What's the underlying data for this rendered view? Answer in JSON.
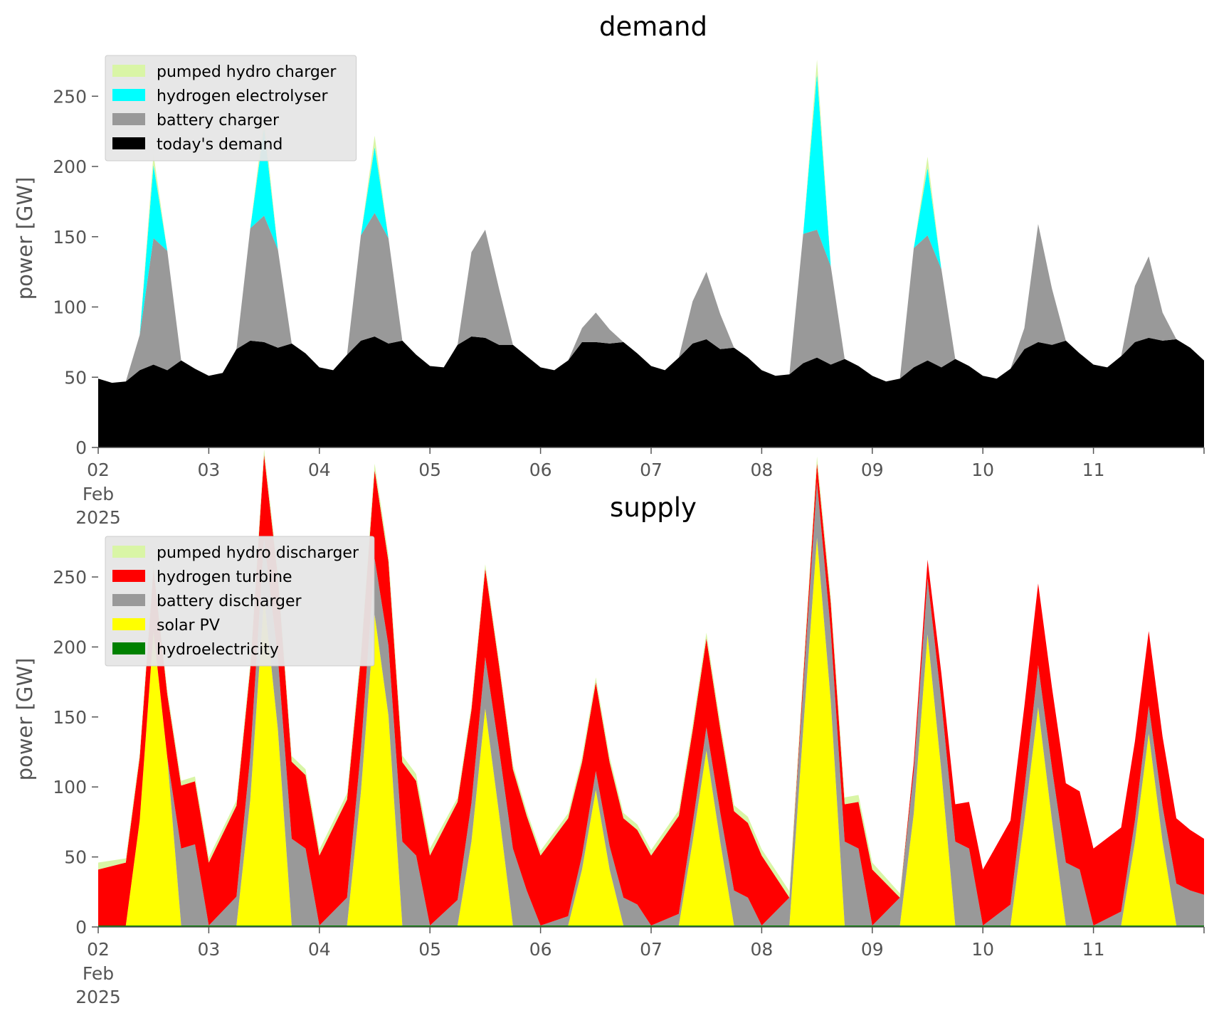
{
  "chart_data": [
    {
      "type": "area",
      "title": "demand",
      "ylabel": "power [GW]",
      "xlabel": "",
      "ylim": [
        0,
        280
      ],
      "xlim": [
        "2025-02-02",
        "2025-02-12"
      ],
      "y_ticks": [
        0,
        50,
        100,
        150,
        200,
        250
      ],
      "y_tick_labels": [
        "0",
        "50",
        "100",
        "150",
        "200",
        "250"
      ],
      "x_ticks": [
        "2025-02-02",
        "2025-02-03",
        "2025-02-04",
        "2025-02-05",
        "2025-02-06",
        "2025-02-07",
        "2025-02-08",
        "2025-02-09",
        "2025-02-10",
        "2025-02-11"
      ],
      "x_tick_labels": [
        "02",
        "03",
        "04",
        "05",
        "06",
        "07",
        "08",
        "09",
        "10",
        "11"
      ],
      "x_tick_sublabels": [
        "Feb",
        "2025"
      ],
      "legend_position": "top-left",
      "stacked": true,
      "series": [
        {
          "name": "today's demand",
          "color": "#000000",
          "x": [
            "2025-02-02 00:00",
            "2025-02-02 03:00",
            "2025-02-02 06:00",
            "2025-02-02 09:00",
            "2025-02-02 12:00",
            "2025-02-02 15:00",
            "2025-02-02 18:00",
            "2025-02-02 21:00",
            "2025-02-03 00:00",
            "2025-02-03 03:00",
            "2025-02-03 06:00",
            "2025-02-03 09:00",
            "2025-02-03 12:00",
            "2025-02-03 15:00",
            "2025-02-03 18:00",
            "2025-02-03 21:00",
            "2025-02-04 00:00",
            "2025-02-04 03:00",
            "2025-02-04 06:00",
            "2025-02-04 09:00",
            "2025-02-04 12:00",
            "2025-02-04 15:00",
            "2025-02-04 18:00",
            "2025-02-04 21:00",
            "2025-02-05 00:00",
            "2025-02-05 03:00",
            "2025-02-05 06:00",
            "2025-02-05 09:00",
            "2025-02-05 12:00",
            "2025-02-05 15:00",
            "2025-02-05 18:00",
            "2025-02-05 21:00",
            "2025-02-06 00:00",
            "2025-02-06 03:00",
            "2025-02-06 06:00",
            "2025-02-06 09:00",
            "2025-02-06 12:00",
            "2025-02-06 15:00",
            "2025-02-06 18:00",
            "2025-02-06 21:00",
            "2025-02-07 00:00",
            "2025-02-07 03:00",
            "2025-02-07 06:00",
            "2025-02-07 09:00",
            "2025-02-07 12:00",
            "2025-02-07 15:00",
            "2025-02-07 18:00",
            "2025-02-07 21:00",
            "2025-02-08 00:00",
            "2025-02-08 03:00",
            "2025-02-08 06:00",
            "2025-02-08 09:00",
            "2025-02-08 12:00",
            "2025-02-08 15:00",
            "2025-02-08 18:00",
            "2025-02-08 21:00",
            "2025-02-09 00:00",
            "2025-02-09 03:00",
            "2025-02-09 06:00",
            "2025-02-09 09:00",
            "2025-02-09 12:00",
            "2025-02-09 15:00",
            "2025-02-09 18:00",
            "2025-02-09 21:00",
            "2025-02-10 00:00",
            "2025-02-10 03:00",
            "2025-02-10 06:00",
            "2025-02-10 09:00",
            "2025-02-10 12:00",
            "2025-02-10 15:00",
            "2025-02-10 18:00",
            "2025-02-10 21:00",
            "2025-02-11 00:00",
            "2025-02-11 03:00",
            "2025-02-11 06:00",
            "2025-02-11 09:00",
            "2025-02-11 12:00",
            "2025-02-11 15:00",
            "2025-02-11 18:00",
            "2025-02-11 21:00",
            "2025-02-12 00:00"
          ],
          "values": [
            49,
            46,
            47,
            55,
            59,
            55,
            62,
            56,
            51,
            53,
            70,
            76,
            75,
            71,
            74,
            67,
            57,
            55,
            66,
            76,
            79,
            74,
            76,
            66,
            58,
            57,
            73,
            79,
            78,
            73,
            73,
            65,
            57,
            55,
            62,
            75,
            75,
            74,
            75,
            67,
            58,
            55,
            64,
            74,
            77,
            70,
            71,
            64,
            55,
            51,
            52,
            60,
            64,
            59,
            63,
            58,
            51,
            47,
            49,
            57,
            62,
            57,
            63,
            58,
            51,
            49,
            56,
            70,
            75,
            73,
            76,
            67,
            59,
            57,
            65,
            75,
            78,
            76,
            77,
            71,
            62
          ]
        },
        {
          "name": "battery charger",
          "color": "#999999",
          "x": [
            "2025-02-02 06:00",
            "2025-02-02 09:00",
            "2025-02-02 12:00",
            "2025-02-02 15:00",
            "2025-02-02 18:00",
            "2025-02-03 06:00",
            "2025-02-03 09:00",
            "2025-02-03 12:00",
            "2025-02-03 15:00",
            "2025-02-03 18:00",
            "2025-02-04 06:00",
            "2025-02-04 09:00",
            "2025-02-04 12:00",
            "2025-02-04 15:00",
            "2025-02-04 18:00",
            "2025-02-05 06:00",
            "2025-02-05 09:00",
            "2025-02-05 12:00",
            "2025-02-05 15:00",
            "2025-02-05 18:00",
            "2025-02-06 06:00",
            "2025-02-06 09:00",
            "2025-02-06 12:00",
            "2025-02-06 15:00",
            "2025-02-06 18:00",
            "2025-02-07 06:00",
            "2025-02-07 09:00",
            "2025-02-07 12:00",
            "2025-02-07 15:00",
            "2025-02-07 18:00",
            "2025-02-08 06:00",
            "2025-02-08 09:00",
            "2025-02-08 12:00",
            "2025-02-08 15:00",
            "2025-02-08 18:00",
            "2025-02-09 06:00",
            "2025-02-09 09:00",
            "2025-02-09 12:00",
            "2025-02-09 15:00",
            "2025-02-09 18:00",
            "2025-02-10 06:00",
            "2025-02-10 09:00",
            "2025-02-10 12:00",
            "2025-02-10 15:00",
            "2025-02-10 18:00",
            "2025-02-11 06:00",
            "2025-02-11 09:00",
            "2025-02-11 12:00",
            "2025-02-11 15:00",
            "2025-02-11 18:00"
          ],
          "values": [
            0,
            25,
            90,
            85,
            0,
            0,
            80,
            90,
            70,
            0,
            0,
            75,
            88,
            75,
            0,
            0,
            60,
            77,
            40,
            0,
            0,
            10,
            21,
            10,
            0,
            0,
            30,
            48,
            25,
            0,
            0,
            92,
            91,
            70,
            0,
            0,
            85,
            89,
            70,
            0,
            0,
            15,
            84,
            40,
            0,
            0,
            40,
            58,
            20,
            0
          ]
        },
        {
          "name": "hydrogen electrolyser",
          "color": "#00ffff",
          "x": [
            "2025-02-02 09:00",
            "2025-02-02 12:00",
            "2025-02-02 15:00",
            "2025-02-03 09:00",
            "2025-02-03 12:00",
            "2025-02-03 15:00",
            "2025-02-04 09:00",
            "2025-02-04 12:00",
            "2025-02-04 15:00",
            "2025-02-08 09:00",
            "2025-02-08 12:00",
            "2025-02-08 15:00",
            "2025-02-09 09:00",
            "2025-02-09 12:00",
            "2025-02-09 15:00"
          ],
          "values": [
            0,
            52,
            0,
            0,
            62,
            0,
            0,
            47,
            0,
            0,
            111,
            0,
            0,
            48,
            0
          ]
        },
        {
          "name": "pumped hydro charger",
          "color": "#d9f5a6",
          "x": [
            "2025-02-02 09:00",
            "2025-02-02 12:00",
            "2025-02-02 15:00",
            "2025-02-03 09:00",
            "2025-02-03 12:00",
            "2025-02-03 15:00",
            "2025-02-04 09:00",
            "2025-02-04 12:00",
            "2025-02-04 15:00",
            "2025-02-08 09:00",
            "2025-02-08 12:00",
            "2025-02-08 15:00",
            "2025-02-09 09:00",
            "2025-02-09 12:00",
            "2025-02-09 15:00"
          ],
          "values": [
            0,
            8,
            0,
            0,
            8,
            0,
            0,
            8,
            0,
            0,
            10,
            0,
            0,
            8,
            0
          ]
        }
      ]
    },
    {
      "type": "area",
      "title": "supply",
      "ylabel": "power [GW]",
      "xlabel": "",
      "ylim": [
        0,
        280
      ],
      "xlim": [
        "2025-02-02",
        "2025-02-12"
      ],
      "y_ticks": [
        0,
        50,
        100,
        150,
        200,
        250
      ],
      "y_tick_labels": [
        "0",
        "50",
        "100",
        "150",
        "200",
        "250"
      ],
      "x_ticks": [
        "2025-02-02",
        "2025-02-03",
        "2025-02-04",
        "2025-02-05",
        "2025-02-06",
        "2025-02-07",
        "2025-02-08",
        "2025-02-09",
        "2025-02-10",
        "2025-02-11"
      ],
      "x_tick_labels": [
        "02",
        "03",
        "04",
        "05",
        "06",
        "07",
        "08",
        "09",
        "10",
        "11"
      ],
      "x_tick_sublabels": [
        "Feb",
        "2025"
      ],
      "legend_position": "top-left",
      "stacked": true,
      "series": [
        {
          "name": "hydroelectricity",
          "color": "#008000",
          "x": [
            "2025-02-02 00:00",
            "2025-02-12 00:00"
          ],
          "values": [
            1,
            1
          ]
        },
        {
          "name": "solar PV",
          "color": "#ffff00",
          "x": [
            "2025-02-02 06:00",
            "2025-02-02 09:00",
            "2025-02-02 12:00",
            "2025-02-02 15:00",
            "2025-02-02 18:00",
            "2025-02-03 06:00",
            "2025-02-03 09:00",
            "2025-02-03 12:00",
            "2025-02-03 15:00",
            "2025-02-03 18:00",
            "2025-02-04 06:00",
            "2025-02-04 09:00",
            "2025-02-04 12:00",
            "2025-02-04 15:00",
            "2025-02-04 18:00",
            "2025-02-05 06:00",
            "2025-02-05 09:00",
            "2025-02-05 12:00",
            "2025-02-05 15:00",
            "2025-02-05 18:00",
            "2025-02-06 06:00",
            "2025-02-06 09:00",
            "2025-02-06 12:00",
            "2025-02-06 15:00",
            "2025-02-06 18:00",
            "2025-02-07 06:00",
            "2025-02-07 09:00",
            "2025-02-07 12:00",
            "2025-02-07 15:00",
            "2025-02-07 18:00",
            "2025-02-08 06:00",
            "2025-02-08 09:00",
            "2025-02-08 12:00",
            "2025-02-08 15:00",
            "2025-02-08 18:00",
            "2025-02-09 06:00",
            "2025-02-09 09:00",
            "2025-02-09 12:00",
            "2025-02-09 15:00",
            "2025-02-09 18:00",
            "2025-02-10 06:00",
            "2025-02-10 09:00",
            "2025-02-10 12:00",
            "2025-02-10 15:00",
            "2025-02-10 18:00",
            "2025-02-11 06:00",
            "2025-02-11 09:00",
            "2025-02-11 12:00",
            "2025-02-11 15:00",
            "2025-02-11 18:00"
          ],
          "values": [
            0,
            75,
            210,
            120,
            0,
            0,
            90,
            235,
            140,
            0,
            0,
            95,
            222,
            150,
            0,
            0,
            60,
            155,
            80,
            0,
            0,
            40,
            97,
            40,
            0,
            0,
            60,
            125,
            60,
            0,
            0,
            140,
            277,
            160,
            0,
            0,
            80,
            208,
            110,
            0,
            0,
            75,
            156,
            75,
            0,
            0,
            60,
            137,
            60,
            0
          ]
        },
        {
          "name": "battery discharger",
          "color": "#999999",
          "x": [
            "2025-02-02 18:00",
            "2025-02-02 21:00",
            "2025-02-03 00:00",
            "2025-02-03 18:00",
            "2025-02-03 21:00",
            "2025-02-04 00:00",
            "2025-02-04 18:00",
            "2025-02-04 21:00",
            "2025-02-05 00:00",
            "2025-02-05 18:00",
            "2025-02-05 21:00",
            "2025-02-06 00:00",
            "2025-02-06 18:00",
            "2025-02-06 21:00",
            "2025-02-07 00:00",
            "2025-02-07 18:00",
            "2025-02-07 21:00",
            "2025-02-08 00:00",
            "2025-02-08 18:00",
            "2025-02-08 21:00",
            "2025-02-09 00:00",
            "2025-02-09 18:00",
            "2025-02-09 21:00",
            "2025-02-10 00:00",
            "2025-02-10 18:00",
            "2025-02-10 21:00",
            "2025-02-11 00:00",
            "2025-02-11 18:00",
            "2025-02-11 21:00",
            "2025-02-12 00:00"
          ],
          "values": [
            55,
            58,
            0,
            62,
            55,
            0,
            60,
            50,
            0,
            55,
            25,
            0,
            20,
            15,
            0,
            25,
            20,
            0,
            60,
            55,
            0,
            60,
            55,
            0,
            45,
            40,
            0,
            30,
            25,
            22
          ]
        },
        {
          "name": "hydrogen turbine",
          "color": "#ff0000",
          "x": [
            "2025-02-02 00:00",
            "2025-02-02 06:00",
            "2025-02-03 00:00",
            "2025-02-03 06:00",
            "2025-02-04 00:00",
            "2025-02-04 06:00",
            "2025-02-05 00:00",
            "2025-02-05 06:00",
            "2025-02-06 00:00",
            "2025-02-06 06:00",
            "2025-02-07 00:00",
            "2025-02-07 06:00",
            "2025-02-08 00:00",
            "2025-02-08 06:00",
            "2025-02-09 00:00",
            "2025-02-09 06:00",
            "2025-02-10 00:00",
            "2025-02-10 06:00",
            "2025-02-11 00:00",
            "2025-02-11 06:00",
            "2025-02-12 00:00"
          ],
          "values": [
            40,
            45,
            45,
            65,
            50,
            70,
            50,
            70,
            50,
            70,
            50,
            70,
            50,
            0,
            40,
            0,
            40,
            60,
            55,
            60,
            40
          ]
        },
        {
          "name": "pumped hydro discharger",
          "color": "#d9f5a6",
          "x": [
            "2025-02-02 00:00",
            "2025-02-02 06:00",
            "2025-02-05 00:00",
            "2025-02-05 06:00",
            "2025-02-09 00:00",
            "2025-02-09 06:00"
          ],
          "values": [
            5,
            3,
            5,
            3,
            5,
            3
          ]
        }
      ]
    }
  ]
}
